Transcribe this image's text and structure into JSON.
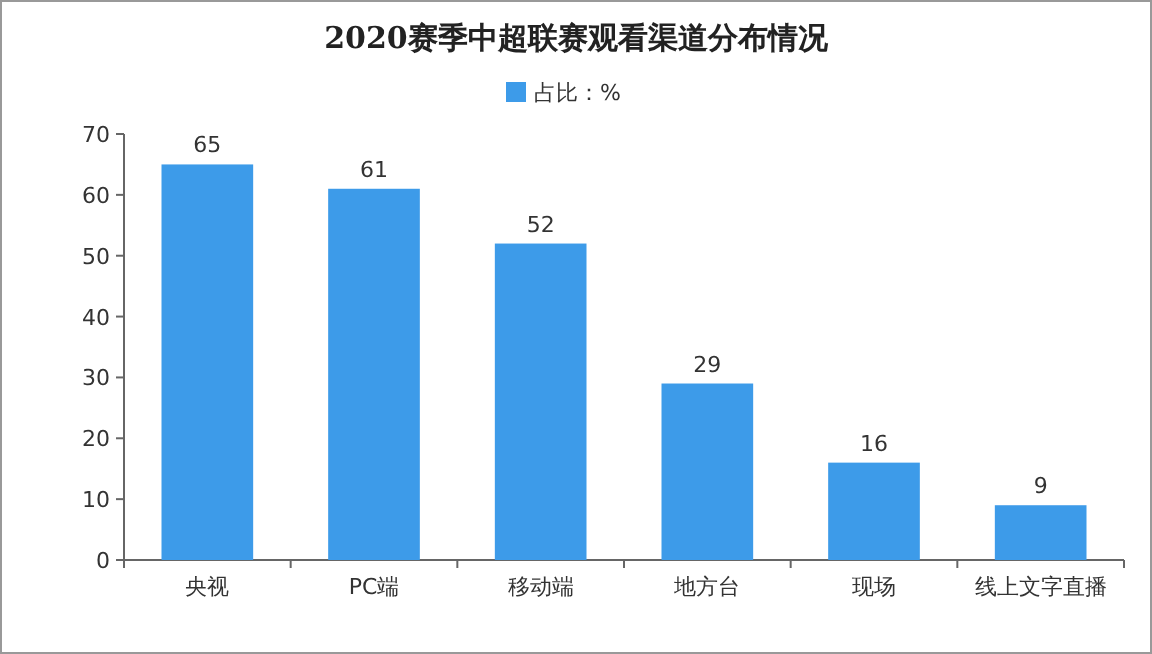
{
  "chart_data": {
    "type": "bar",
    "title": "2020赛季中超联赛观看渠道分布情况",
    "categories": [
      "央视",
      "PC端",
      "移动端",
      "地方台",
      "现场",
      "线上文字直播"
    ],
    "series": [
      {
        "name": "占比：%",
        "color": "#3d9be9",
        "values": [
          65,
          61,
          52,
          29,
          16,
          9
        ]
      }
    ],
    "ylim": [
      0,
      70
    ],
    "yticks": [
      0,
      10,
      20,
      30,
      40,
      50,
      60,
      70
    ],
    "data_labels": true,
    "legend": "top",
    "grid": false
  }
}
